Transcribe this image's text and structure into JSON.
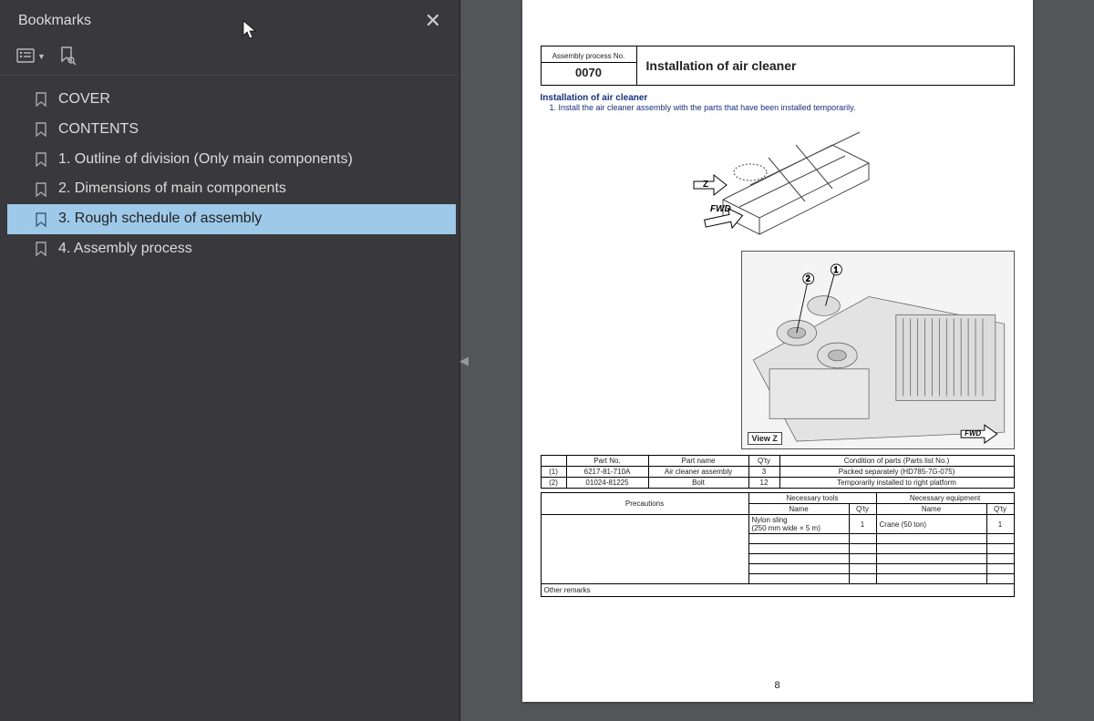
{
  "sidebar": {
    "title": "Bookmarks",
    "items": [
      {
        "label": "COVER"
      },
      {
        "label": "CONTENTS"
      },
      {
        "label": "1. Outline of division (Only main components)"
      },
      {
        "label": "2. Dimensions of main components"
      },
      {
        "label": "3. Rough schedule of assembly"
      },
      {
        "label": "4. Assembly process"
      }
    ],
    "selected_index": 4
  },
  "page": {
    "proc_label": "Assembly process No.",
    "proc_no": "0070",
    "title": "Installation of air cleaner",
    "section_title": "Installation of air cleaner",
    "section_body": "1.   Install the air cleaner assembly with the parts that have been installed temporarily.",
    "z_label": "Z",
    "fwd_label": "FWD",
    "view_label": "View Z",
    "page_num": "8",
    "parts_headers": [
      "",
      "Part No.",
      "Part name",
      "Q'ty",
      "Condition of parts (Parts list No.)"
    ],
    "parts_rows": [
      [
        "(1)",
        "6217-81-710A",
        "Air cleaner assembly",
        "3",
        "Packed separately (HD785-7G-075)"
      ],
      [
        "(2)",
        "01024-81225",
        "Bolt",
        "12",
        "Temporarily installed to right platform"
      ]
    ],
    "lower": {
      "precautions": "Precautions",
      "tools": "Necessary tools",
      "equip": "Necessary equipment",
      "name": "Name",
      "qty": "Q'ty",
      "tool_rows": [
        [
          "Nylon sling\n(250 mm wide × 5 m)",
          "1",
          "Crane (50 ton)",
          "1"
        ]
      ],
      "other": "Other remarks"
    }
  }
}
